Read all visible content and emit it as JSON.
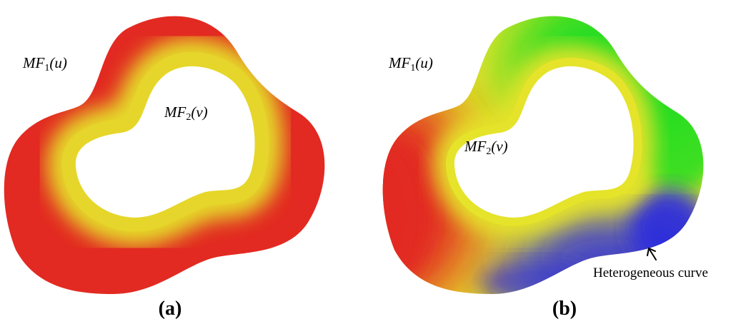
{
  "panel_a": {
    "caption": "(a)",
    "outer_label": {
      "base": "MF",
      "sub": "1",
      "arg": "(u)"
    },
    "inner_label": {
      "base": "MF",
      "sub": "2",
      "arg": "(v)"
    },
    "colors": {
      "outer": "#e22a22",
      "inner": "#e5e32a"
    }
  },
  "panel_b": {
    "caption": "(b)",
    "outer_label": {
      "base": "MF",
      "sub": "1",
      "arg": "(u)"
    },
    "inner_label": {
      "base": "MF",
      "sub": "2",
      "arg": "(v)"
    },
    "annotation": "Heterogeneous curve",
    "colors": {
      "red": "#e22a22",
      "yellow": "#e5e32a",
      "green": "#22dd22",
      "blue": "#2a2ae0"
    }
  }
}
